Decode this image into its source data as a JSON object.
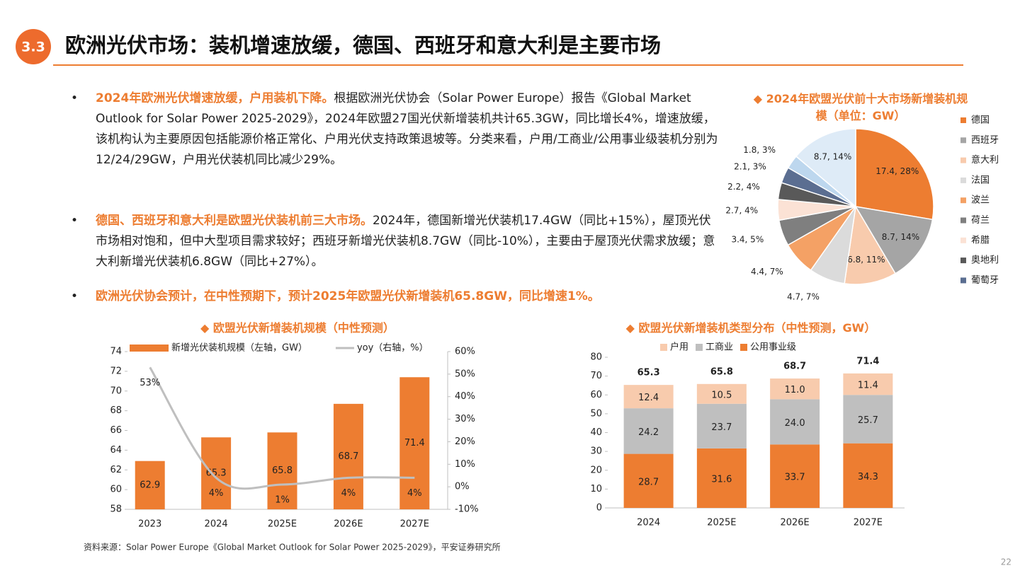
{
  "header": {
    "badge": "3.3",
    "title": "欧洲光伏市场：装机增速放缓，德国、西班牙和意大利是主要市场"
  },
  "bullets": [
    {
      "lead": "2024年欧洲光伏增速放缓，户用装机下降。",
      "text": "根据欧洲光伏协会（Solar Power Europe）报告《Global Market Outlook for Solar Power 2025-2029》，2024年欧盟27国光伏新增装机共计65.3GW，同比增长4%，增速放缓，该机构认为主要原因包括能源价格正常化、户用光伏支持政策退坡等。分类来看，户用/工商业/公用事业级装机分别为12/24/29GW，户用光伏装机同比减少29%。"
    },
    {
      "lead": "德国、西班牙和意大利是欧盟光伏装机前三大市场。",
      "text": "2024年，德国新增光伏装机17.4GW（同比+15%），屋顶光伏市场相对饱和，但中大型项目需求较好；西班牙新增光伏装机8.7GW（同比-10%），主要由于屋顶光伏需求放缓；意大利新增光伏装机6.8GW（同比+27%）。"
    },
    {
      "lead": "欧洲光伏协会预计，在中性预期下，预计2025年欧盟光伏新增装机65.8GW，同比增速1%。",
      "text": ""
    }
  ],
  "chart_data": [
    {
      "type": "pie",
      "title": "2024年欧盟光伏前十大市场新增装机规模（单位：GW）",
      "categories": [
        "德国",
        "西班牙",
        "意大利",
        "法国",
        "波兰",
        "荷兰",
        "希腊",
        "奥地利",
        "葡萄牙",
        null,
        null
      ],
      "values": [
        17.4,
        8.7,
        6.8,
        4.7,
        4.4,
        3.4,
        2.7,
        2.2,
        2.1,
        1.8,
        8.7
      ],
      "value_labels": [
        "17.4, 28%",
        "8.7, 14%",
        "6.8, 11%",
        "4.7, 7%",
        "4.4, 7%",
        "3.4, 5%",
        "2.7, 4%",
        "2.2, 4%",
        "2.1, 3%",
        "1.8, 3%",
        "8.7, 14%"
      ],
      "colors": [
        "#ED7D31",
        "#A5A5A5",
        "#F8CBAD",
        "#DBDBDB",
        "#F4A165",
        "#7F7F7F",
        "#FBE2D5",
        "#595959",
        "#5B6E91",
        "#BDD7EE",
        "#DEEBF7"
      ],
      "legend": "right"
    },
    {
      "type": "bar",
      "title": "欧盟光伏新增装机规模（中性预测）",
      "categories": [
        "2023",
        "2024",
        "2025E",
        "2026E",
        "2027E"
      ],
      "series": [
        {
          "name": "新增光伏装机规模（左轴，GW）",
          "color": "#ED7D31",
          "values": [
            62.9,
            65.3,
            65.8,
            68.7,
            71.4
          ]
        },
        {
          "name": "yoy（右轴，%）",
          "type": "line",
          "axis": "y2",
          "color": "#BFBFBF",
          "values": [
            53,
            4,
            1,
            4,
            4
          ],
          "value_labels": [
            "53%",
            "4%",
            "1%",
            "4%",
            "4%"
          ]
        }
      ],
      "ylim": [
        58,
        74
      ],
      "yticks": [
        58,
        60,
        62,
        64,
        66,
        68,
        70,
        72,
        74
      ],
      "y2lim": [
        -10,
        60
      ],
      "y2ticks": [
        {
          "value": -10,
          "label": "-10%"
        },
        {
          "value": 0,
          "label": "0%"
        },
        {
          "value": 10,
          "label": "10%"
        },
        {
          "value": 20,
          "label": "20%"
        },
        {
          "value": 30,
          "label": "30%"
        },
        {
          "value": 40,
          "label": "40%"
        },
        {
          "value": 50,
          "label": "50%"
        },
        {
          "value": 60,
          "label": "60%"
        }
      ]
    },
    {
      "type": "bar",
      "stacked": true,
      "title": "欧盟光伏新增装机类型分布（中性预测，GW）",
      "categories": [
        "2024",
        "2025E",
        "2026E",
        "2027E"
      ],
      "series": [
        {
          "name": "户用",
          "color": "#F8CBAD",
          "values": [
            12.4,
            10.5,
            11.0,
            11.4
          ],
          "value_labels": [
            "12.4",
            "10.5",
            "11.0",
            "11.4"
          ]
        },
        {
          "name": "工商业",
          "color": "#BFBFBF",
          "values": [
            24.2,
            23.7,
            24.0,
            25.7
          ],
          "value_labels": [
            "24.2",
            "23.7",
            "24.0",
            "25.7"
          ]
        },
        {
          "name": "公用事业级",
          "color": "#ED7D31",
          "values": [
            28.7,
            31.6,
            33.7,
            34.3
          ]
        }
      ],
      "totals": [
        65.3,
        65.8,
        68.7,
        71.4
      ],
      "ylim": [
        0,
        80
      ],
      "yticks": [
        0,
        10,
        20,
        30,
        40,
        50,
        60,
        70,
        80
      ]
    }
  ],
  "source": "资料来源：Solar Power Europe《Global Market Outlook for Solar Power 2025-2029》，平安证券研究所",
  "page_number": "22"
}
